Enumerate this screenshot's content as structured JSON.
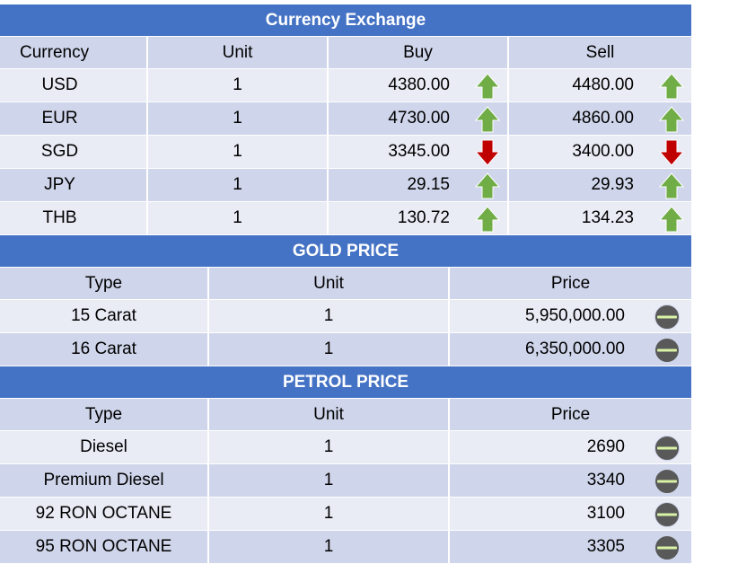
{
  "currency": {
    "title": "Currency Exchange",
    "headers": [
      "Currency",
      "Unit",
      "Buy",
      "Sell"
    ],
    "rows": [
      {
        "currency": "USD",
        "unit": "1",
        "buy": "4380.00",
        "buy_trend": "up",
        "sell": "4480.00",
        "sell_trend": "up"
      },
      {
        "currency": "EUR",
        "unit": "1",
        "buy": "4730.00",
        "buy_trend": "up",
        "sell": "4860.00",
        "sell_trend": "up"
      },
      {
        "currency": "SGD",
        "unit": "1",
        "buy": "3345.00",
        "buy_trend": "down",
        "sell": "3400.00",
        "sell_trend": "down"
      },
      {
        "currency": "JPY",
        "unit": "1",
        "buy": "29.15",
        "buy_trend": "up",
        "sell": "29.93",
        "sell_trend": "up"
      },
      {
        "currency": "THB",
        "unit": "1",
        "buy": "130.72",
        "buy_trend": "up",
        "sell": "134.23",
        "sell_trend": "up"
      }
    ]
  },
  "gold": {
    "title": "GOLD PRICE",
    "headers": [
      "Type",
      "Unit",
      "Price"
    ],
    "rows": [
      {
        "type": "15 Carat",
        "unit": "1",
        "price": "5,950,000.00",
        "trend": "unchanged"
      },
      {
        "type": "16 Carat",
        "unit": "1",
        "price": "6,350,000.00",
        "trend": "unchanged"
      }
    ]
  },
  "petrol": {
    "title": "PETROL PRICE",
    "headers": [
      "Type",
      "Unit",
      "Price"
    ],
    "rows": [
      {
        "type": "Diesel",
        "unit": "1",
        "price": "2690",
        "trend": "unchanged"
      },
      {
        "type": "Premium Diesel",
        "unit": "1",
        "price": "3340",
        "trend": "unchanged"
      },
      {
        "type": "92 RON OCTANE",
        "unit": "1",
        "price": "3100",
        "trend": "unchanged"
      },
      {
        "type": "95 RON OCTANE",
        "unit": "1",
        "price": "3305",
        "trend": "unchanged"
      }
    ]
  },
  "colors": {
    "header_blue": "#4472c4",
    "row_dark": "#cfd5ea",
    "row_light": "#e9ebf5",
    "arrow_up": "#70ad47",
    "arrow_down": "#c00000",
    "neutral_icon": "#595959",
    "neutral_line": "#d9f2a6"
  }
}
